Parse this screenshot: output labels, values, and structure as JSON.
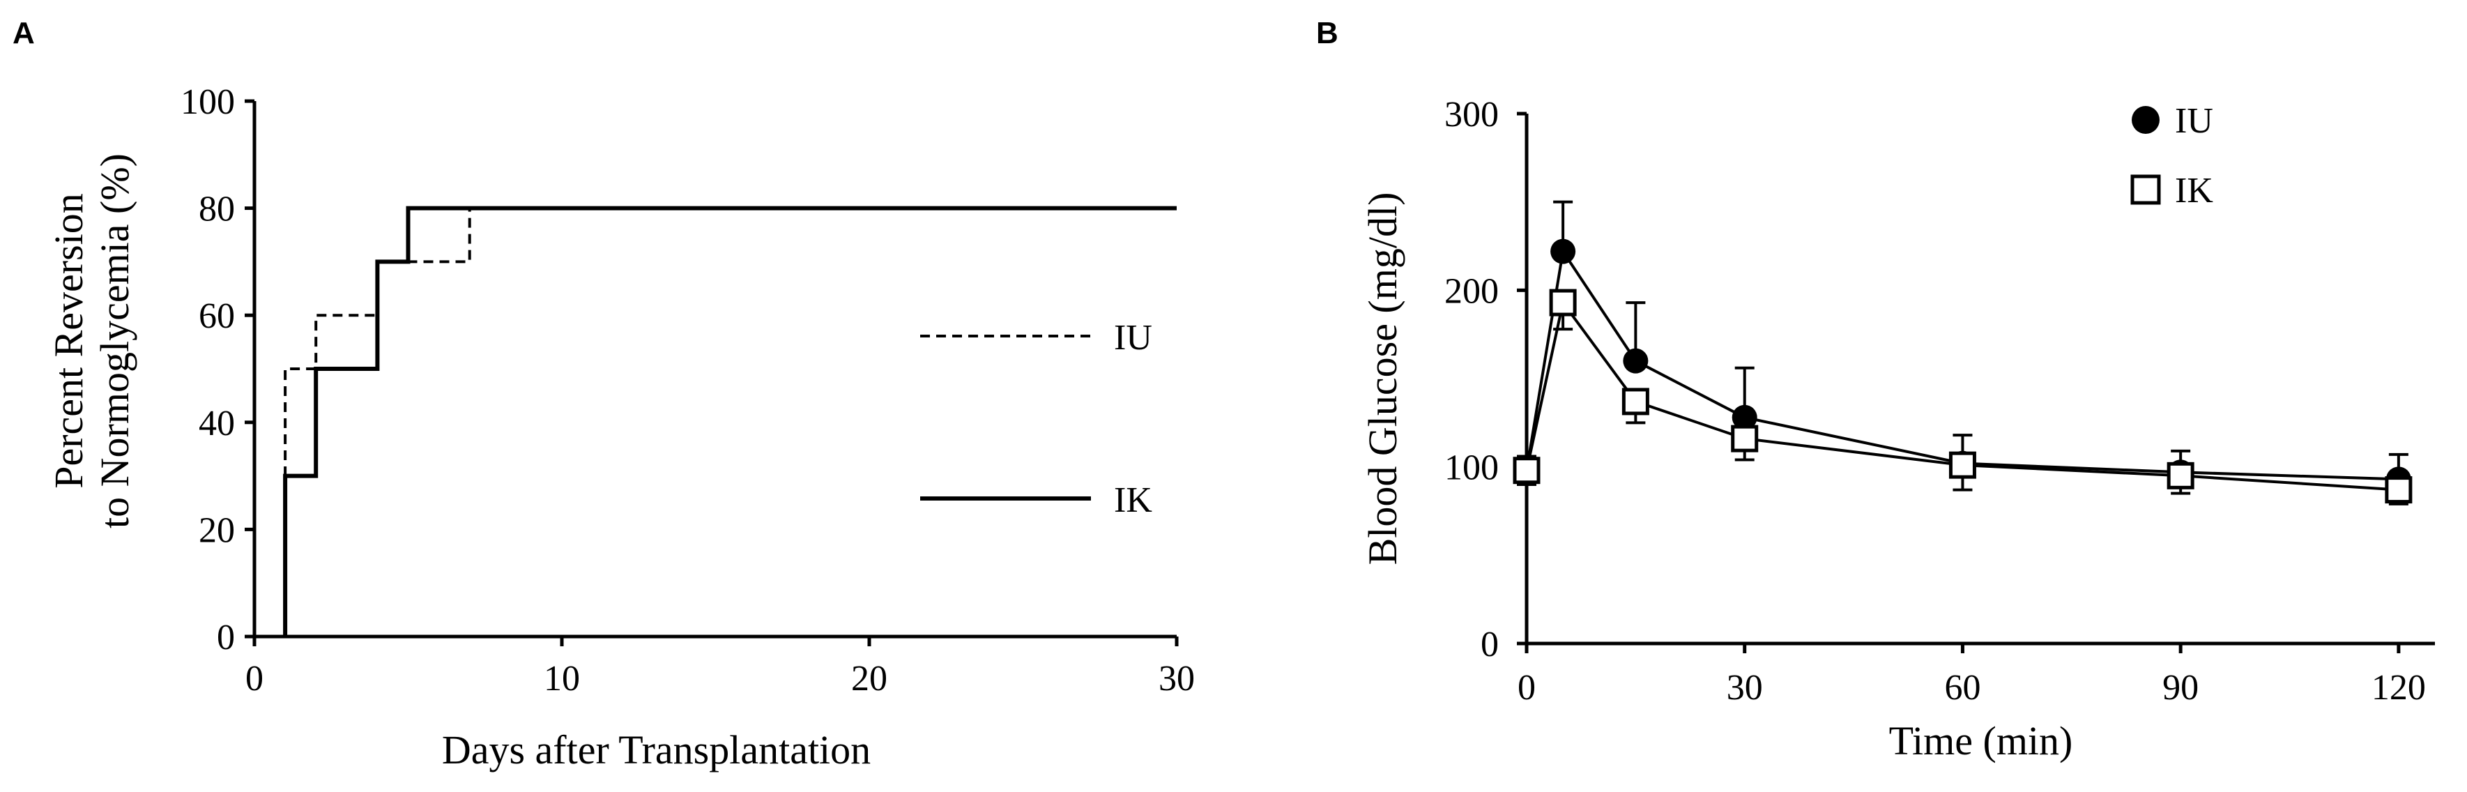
{
  "chart_data": [
    {
      "panel": "A",
      "type": "line",
      "title": "",
      "xlabel": "Days after Transplantation",
      "ylabel": [
        "Percent Reversion",
        "to Normoglycemia (%)"
      ],
      "xlim": [
        0,
        30
      ],
      "ylim": [
        0,
        100
      ],
      "xticks": [
        0,
        10,
        20,
        30
      ],
      "xtick_labels": [
        "0",
        "10",
        "20",
        "30"
      ],
      "yticks": [
        0,
        20,
        40,
        60,
        80,
        100
      ],
      "ytick_labels": [
        "0",
        "20",
        "40",
        "60",
        "80",
        "100"
      ],
      "step": true,
      "legend_position": "right",
      "series": [
        {
          "name": "IU",
          "style": "dashed",
          "x": [
            1,
            1,
            2,
            2,
            4,
            4,
            5,
            5,
            7,
            7,
            30
          ],
          "y": [
            0,
            50,
            50,
            60,
            60,
            70,
            70,
            70,
            70,
            80,
            80
          ]
        },
        {
          "name": "IK",
          "style": "solid",
          "x": [
            1,
            1,
            2,
            2,
            4,
            4,
            5,
            5,
            30
          ],
          "y": [
            0,
            30,
            30,
            50,
            50,
            70,
            70,
            80,
            80
          ]
        }
      ]
    },
    {
      "panel": "B",
      "type": "line",
      "title": "",
      "xlabel": "Time (min)",
      "ylabel": [
        "Blood Glucose (mg/dl)"
      ],
      "xlim": [
        0,
        125
      ],
      "ylim": [
        0,
        300
      ],
      "xticks": [
        0,
        30,
        60,
        90,
        120
      ],
      "xtick_labels": [
        "0",
        "30",
        "60",
        "90",
        "120"
      ],
      "yticks": [
        0,
        100,
        200,
        300
      ],
      "ytick_labels": [
        "0",
        "100",
        "200",
        "300"
      ],
      "legend_position": "top-right",
      "series": [
        {
          "name": "IU",
          "marker": "filled-circle",
          "x": [
            0,
            5,
            15,
            30,
            60,
            90,
            120
          ],
          "y": [
            98,
            222,
            160,
            128,
            102,
            97,
            93
          ],
          "err": [
            8,
            28,
            33,
            28,
            16,
            12,
            14
          ]
        },
        {
          "name": "IK",
          "marker": "open-square",
          "x": [
            0,
            5,
            15,
            30,
            60,
            90,
            120
          ],
          "y": [
            98,
            193,
            137,
            116,
            101,
            95,
            87
          ],
          "err": [
            8,
            15,
            12,
            12,
            14,
            10,
            8
          ]
        }
      ]
    }
  ]
}
